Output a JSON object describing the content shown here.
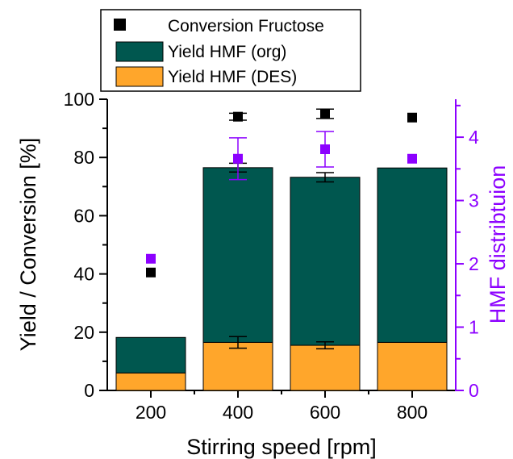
{
  "chart_data": {
    "type": "bar",
    "stacked": true,
    "x_label": "Stirring speed [rpm]",
    "y_label_left": "Yield / Conversion [%]",
    "y_label_right": "HMF distribtuion",
    "categories": [
      "200",
      "400",
      "600",
      "800"
    ],
    "y_left_range": [
      0,
      100
    ],
    "y_left_ticks": [
      "0",
      "20",
      "40",
      "60",
      "80",
      "100"
    ],
    "y_right_range": [
      0,
      4.6
    ],
    "y_right_ticks": [
      "0",
      "1",
      "2",
      "3",
      "4"
    ],
    "series": [
      {
        "name": "Yield HMF (DES)",
        "kind": "bar",
        "axis": "left",
        "color": "#FFA62B",
        "values": [
          6,
          16.5,
          15.5,
          16.5
        ],
        "errors": [
          null,
          2,
          1.2,
          null
        ]
      },
      {
        "name": "Yield HMF (org)",
        "kind": "bar",
        "axis": "left",
        "color": "#00574F",
        "values": [
          12.2,
          60,
          57.7,
          59.9
        ],
        "errors": [
          null,
          1.5,
          1.6,
          null
        ]
      },
      {
        "name": "Conversion Fructose",
        "kind": "scatter",
        "axis": "left",
        "color": "#000000",
        "values": [
          40.5,
          94,
          95,
          93.7
        ],
        "errors": [
          null,
          1.2,
          1.6,
          null
        ]
      },
      {
        "name": "HMF distribution",
        "kind": "scatter",
        "axis": "right",
        "color": "#8C00FF",
        "values": [
          2.08,
          3.66,
          3.81,
          3.66
        ],
        "errors": [
          null,
          0.33,
          0.28,
          null
        ]
      }
    ],
    "legend": {
      "position": "top",
      "entries": [
        "Conversion Fructose",
        "Yield HMF (org)",
        "Yield HMF (DES)"
      ]
    },
    "grid": false
  }
}
